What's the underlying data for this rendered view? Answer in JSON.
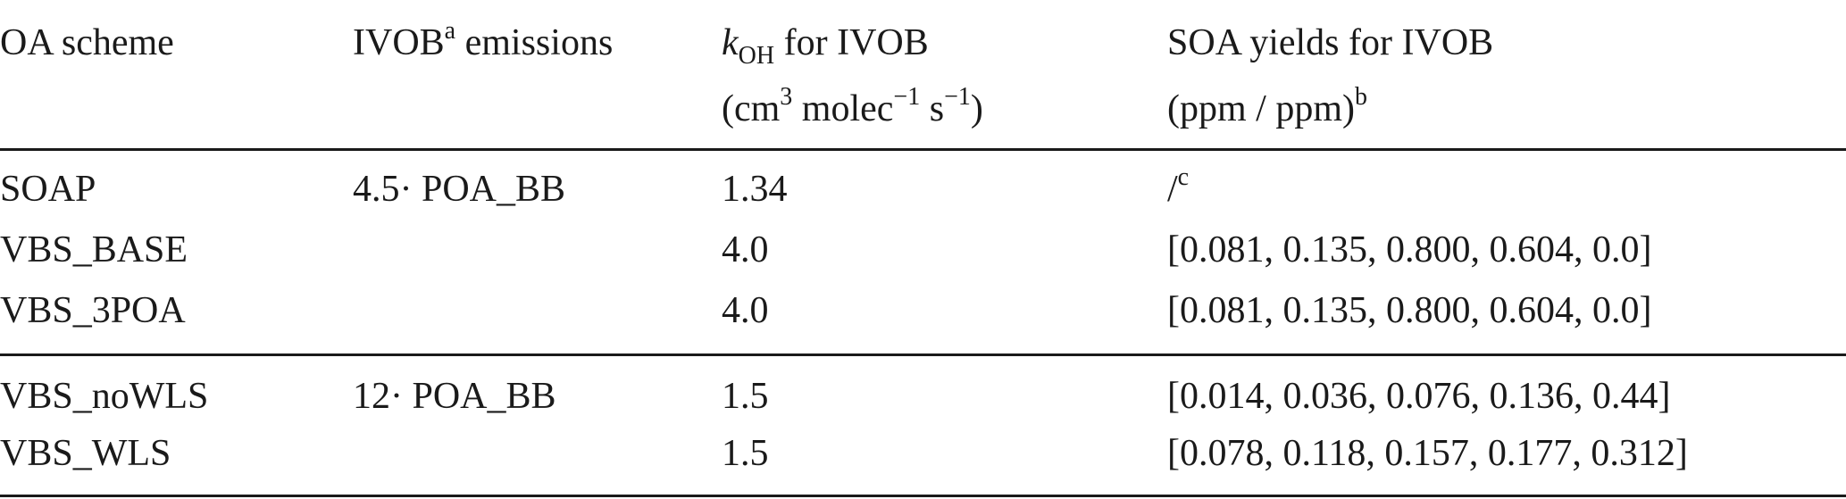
{
  "header": {
    "col1": "OA scheme",
    "col2_main": "IVOB",
    "col2_sup": "a",
    "col2_rest": " emissions",
    "col3_k": "k",
    "col3_sub": "OH",
    "col3_rest": " for IVOB",
    "col3_unit_open": "(cm",
    "col3_unit_sup1": "3",
    "col3_unit_mid": " molec",
    "col3_unit_sup2": "−1",
    "col3_unit_s": " s",
    "col3_unit_sup3": "−1",
    "col3_unit_close": ")",
    "col4_line1": "SOA yields for IVOB",
    "col4_line2": "(ppm / ppm)",
    "col4_sup": "b"
  },
  "rows": [
    {
      "scheme": "SOAP",
      "emissions": "4.5· POA_BB",
      "koh": "1.34",
      "yields": "/",
      "yields_sup": "c"
    },
    {
      "scheme": "VBS_BASE",
      "emissions": "",
      "koh": "4.0",
      "yields": "[0.081, 0.135, 0.800, 0.604, 0.0]",
      "yields_sup": ""
    },
    {
      "scheme": "VBS_3POA",
      "emissions": "",
      "koh": "4.0",
      "yields": "[0.081, 0.135, 0.800, 0.604, 0.0]",
      "yields_sup": ""
    },
    {
      "scheme": "VBS_noWLS",
      "emissions": "12· POA_BB",
      "koh": "1.5",
      "yields": "[0.014, 0.036, 0.076, 0.136, 0.44]",
      "yields_sup": ""
    },
    {
      "scheme": "VBS_WLS",
      "emissions": "",
      "koh": "1.5",
      "yields": "[0.078, 0.118, 0.157, 0.177, 0.312]",
      "yields_sup": ""
    }
  ]
}
